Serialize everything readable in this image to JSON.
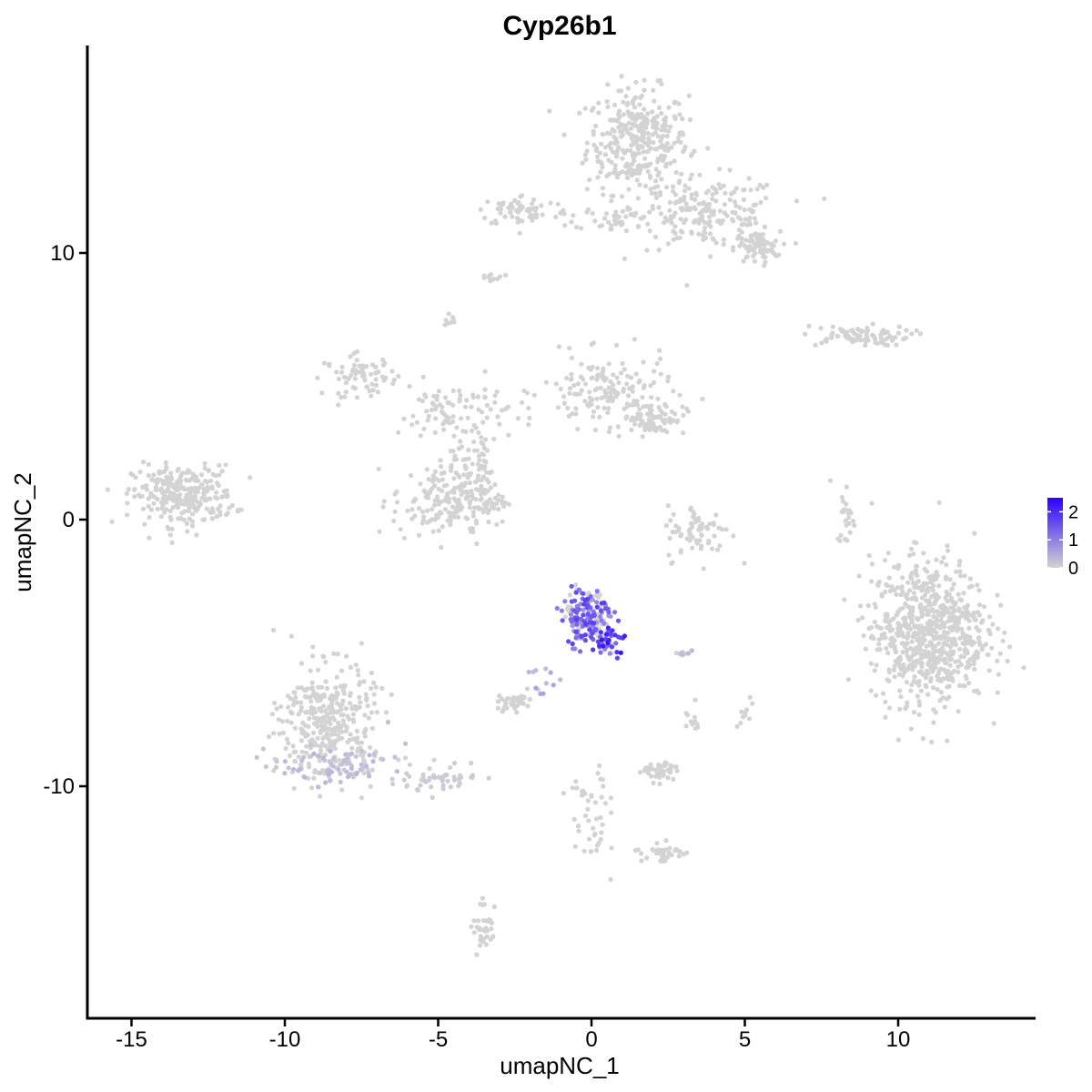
{
  "chart_data": {
    "type": "scatter",
    "title": "Cyp26b1",
    "xlabel": "umapNC_1",
    "ylabel": "umapNC_2",
    "xlim": [
      -16.5,
      14.5
    ],
    "ylim": [
      -18.5,
      17.8
    ],
    "x_ticks": [
      -15,
      -10,
      -5,
      0,
      5,
      10
    ],
    "x_tick_labels": [
      "-15",
      "-10",
      "-5",
      "0",
      "5",
      "10"
    ],
    "y_ticks": [
      -10,
      0,
      10
    ],
    "y_tick_labels": [
      "-10",
      "0",
      "10"
    ],
    "grid": false,
    "legend_position": "right",
    "color_scale": {
      "low": "#d3d3d3",
      "high": "#2b00ff",
      "min": 0,
      "max": 2.5,
      "breaks": [
        0,
        1,
        2
      ],
      "break_labels": [
        "0",
        "1",
        "2"
      ]
    },
    "clusters": [
      {
        "cx": 1.5,
        "cy": 14.2,
        "sx": 1.1,
        "sy": 1.3,
        "n": 340,
        "expr": 0
      },
      {
        "cx": 3.8,
        "cy": 11.5,
        "sx": 1.6,
        "sy": 0.9,
        "n": 200,
        "expr": 0
      },
      {
        "cx": 5.4,
        "cy": 10.2,
        "sx": 0.5,
        "sy": 0.4,
        "n": 70,
        "expr": 0
      },
      {
        "cx": -2.2,
        "cy": 11.6,
        "sx": 1.0,
        "sy": 0.4,
        "n": 70,
        "expr": 0
      },
      {
        "cx": 0.8,
        "cy": 11.3,
        "sx": 0.9,
        "sy": 0.3,
        "n": 40,
        "expr": 0
      },
      {
        "cx": 8.6,
        "cy": 6.9,
        "sx": 1.2,
        "sy": 0.25,
        "n": 80,
        "expr": 0
      },
      {
        "cx": -13.3,
        "cy": 0.9,
        "sx": 1.1,
        "sy": 0.75,
        "n": 280,
        "expr": 0
      },
      {
        "cx": -7.5,
        "cy": 5.4,
        "sx": 0.8,
        "sy": 0.5,
        "n": 70,
        "expr": 0
      },
      {
        "cx": -4.5,
        "cy": 4.0,
        "sx": 1.2,
        "sy": 0.8,
        "n": 90,
        "expr": 0
      },
      {
        "cx": 0.5,
        "cy": 4.8,
        "sx": 1.4,
        "sy": 0.9,
        "n": 150,
        "expr": 0
      },
      {
        "cx": 2.0,
        "cy": 3.8,
        "sx": 0.7,
        "sy": 0.4,
        "n": 80,
        "expr": 0
      },
      {
        "cx": -5.0,
        "cy": 0.7,
        "sx": 1.0,
        "sy": 1.0,
        "n": 140,
        "expr": 0
      },
      {
        "cx": -3.7,
        "cy": 0.8,
        "sx": 0.6,
        "sy": 0.7,
        "n": 80,
        "expr": 0
      },
      {
        "cx": -3.8,
        "cy": 2.5,
        "sx": 0.5,
        "sy": 1.0,
        "n": 40,
        "expr": 0
      },
      {
        "cx": 3.5,
        "cy": -0.5,
        "sx": 0.7,
        "sy": 0.7,
        "n": 70,
        "expr": 0
      },
      {
        "cx": 8.3,
        "cy": 0.2,
        "sx": 0.2,
        "sy": 0.8,
        "n": 25,
        "expr": 0
      },
      {
        "cx": 11.0,
        "cy": -4.2,
        "sx": 1.25,
        "sy": 1.8,
        "n": 750,
        "expr": 0
      },
      {
        "cx": -0.1,
        "cy": -3.6,
        "sx": 0.5,
        "sy": 0.7,
        "n": 160,
        "expr": 1.5
      },
      {
        "cx": 0.5,
        "cy": -4.6,
        "sx": 0.4,
        "sy": 0.4,
        "n": 40,
        "expr": 2.1
      },
      {
        "cx": 2.9,
        "cy": -5.0,
        "sx": 0.15,
        "sy": 0.1,
        "n": 8,
        "expr": 0.4
      },
      {
        "cx": -1.6,
        "cy": -6.0,
        "sx": 0.3,
        "sy": 0.6,
        "n": 12,
        "expr": 0.6
      },
      {
        "cx": -8.6,
        "cy": -7.5,
        "sx": 1.0,
        "sy": 1.4,
        "n": 320,
        "expr": 0
      },
      {
        "cx": -8.5,
        "cy": -9.2,
        "sx": 1.3,
        "sy": 0.5,
        "n": 110,
        "expr": 0.3
      },
      {
        "cx": -5.2,
        "cy": -9.8,
        "sx": 0.9,
        "sy": 0.4,
        "n": 50,
        "expr": 0.1
      },
      {
        "cx": -2.6,
        "cy": -6.8,
        "sx": 0.35,
        "sy": 0.25,
        "n": 40,
        "expr": 0
      },
      {
        "cx": 2.2,
        "cy": -9.4,
        "sx": 0.4,
        "sy": 0.3,
        "n": 50,
        "expr": 0
      },
      {
        "cx": 0.0,
        "cy": -11.0,
        "sx": 0.5,
        "sy": 1.3,
        "n": 45,
        "expr": 0
      },
      {
        "cx": 2.3,
        "cy": -12.5,
        "sx": 0.5,
        "sy": 0.25,
        "n": 35,
        "expr": 0
      },
      {
        "cx": -3.5,
        "cy": -15.2,
        "sx": 0.25,
        "sy": 0.6,
        "n": 35,
        "expr": 0
      },
      {
        "cx": 3.3,
        "cy": -7.5,
        "sx": 0.2,
        "sy": 0.4,
        "n": 12,
        "expr": 0
      },
      {
        "cx": 5.1,
        "cy": -7.3,
        "sx": 0.2,
        "sy": 0.3,
        "n": 10,
        "expr": 0
      },
      {
        "cx": -3.2,
        "cy": 9.1,
        "sx": 0.2,
        "sy": 0.15,
        "n": 10,
        "expr": 0
      },
      {
        "cx": -4.6,
        "cy": 7.5,
        "sx": 0.15,
        "sy": 0.15,
        "n": 8,
        "expr": 0
      }
    ]
  }
}
